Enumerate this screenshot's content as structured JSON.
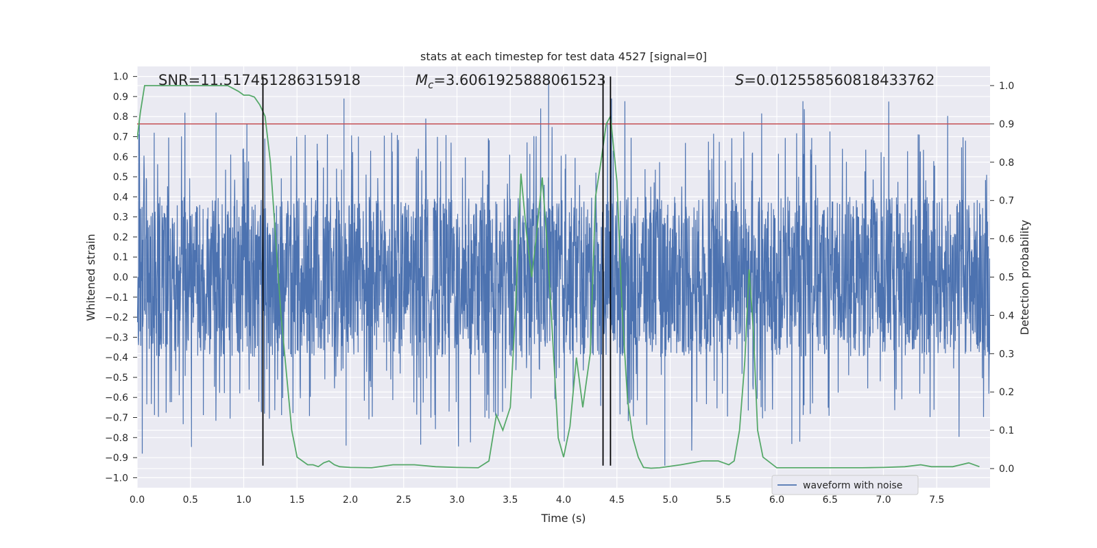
{
  "chart_data": {
    "type": "line",
    "title": "stats at each timestep for test data 4527 [signal=0]",
    "xlabel": "Time (s)",
    "ylabel": "Whitened strain",
    "ylabel_right": "Detection probability",
    "xlim": [
      0.0,
      8.0
    ],
    "ylim": [
      -1.05,
      1.05
    ],
    "ylim_right": [
      -0.05,
      1.05
    ],
    "x_ticks": [
      0.0,
      0.5,
      1.0,
      1.5,
      2.0,
      2.5,
      3.0,
      3.5,
      4.0,
      4.5,
      5.0,
      5.5,
      6.0,
      6.5,
      7.0,
      7.5
    ],
    "x_tick_labels": [
      "0.0",
      "0.5",
      "1.0",
      "1.5",
      "2.0",
      "2.5",
      "3.0",
      "3.5",
      "4.0",
      "4.5",
      "5.0",
      "5.5",
      "6.0",
      "6.5",
      "7.0",
      "7.5"
    ],
    "y_ticks": [
      -1.0,
      -0.9,
      -0.8,
      -0.7,
      -0.6,
      -0.5,
      -0.4,
      -0.3,
      -0.2,
      -0.1,
      0.0,
      0.1,
      0.2,
      0.3,
      0.4,
      0.5,
      0.6,
      0.7,
      0.8,
      0.9,
      1.0
    ],
    "y_tick_labels": [
      "−1.0",
      "−0.9",
      "−0.8",
      "−0.7",
      "−0.6",
      "−0.5",
      "−0.4",
      "−0.3",
      "−0.2",
      "−0.1",
      "0.0",
      "0.1",
      "0.2",
      "0.3",
      "0.4",
      "0.5",
      "0.6",
      "0.7",
      "0.8",
      "0.9",
      "1.0"
    ],
    "y2_ticks": [
      0.0,
      0.1,
      0.2,
      0.3,
      0.4,
      0.5,
      0.6,
      0.7,
      0.8,
      0.9,
      1.0
    ],
    "y2_tick_labels": [
      "0.0",
      "0.1",
      "0.2",
      "0.3",
      "0.4",
      "0.5",
      "0.6",
      "0.7",
      "0.8",
      "0.9",
      "1.0"
    ],
    "annotations": {
      "snr": "SNR=11.517451286315918",
      "mc_symbol": "M",
      "mc_sub": "c",
      "mc_value": "=3.6061925888061523",
      "s_symbol": "S",
      "s_value": "=0.012558560818433762"
    },
    "threshold": {
      "value": 0.9,
      "axis": "right",
      "color": "#c44e52"
    },
    "vertical_lines": [
      1.18,
      4.37,
      4.44
    ],
    "legend": {
      "label": "waveform with noise",
      "location": "lower-right"
    },
    "series": [
      {
        "name": "waveform with noise",
        "axis": "left",
        "color": "#4c72b0",
        "kind": "dense-noise",
        "samples": 3000,
        "core_amplitude": 0.4,
        "max_peak": 1.0,
        "min_trough": -0.94
      },
      {
        "name": "detection probability",
        "axis": "right",
        "color": "#55a868",
        "x": [
          0.0,
          0.03,
          0.07,
          0.2,
          0.4,
          0.6,
          0.85,
          0.95,
          1.0,
          1.05,
          1.1,
          1.15,
          1.2,
          1.25,
          1.3,
          1.35,
          1.4,
          1.45,
          1.5,
          1.55,
          1.6,
          1.65,
          1.7,
          1.75,
          1.8,
          1.85,
          1.9,
          2.0,
          2.2,
          2.4,
          2.6,
          2.8,
          3.0,
          3.2,
          3.3,
          3.37,
          3.43,
          3.5,
          3.55,
          3.6,
          3.65,
          3.7,
          3.75,
          3.8,
          3.85,
          3.9,
          3.95,
          4.0,
          4.06,
          4.12,
          4.18,
          4.25,
          4.3,
          4.35,
          4.4,
          4.44,
          4.5,
          4.55,
          4.6,
          4.65,
          4.7,
          4.75,
          4.82,
          4.9,
          5.1,
          5.3,
          5.45,
          5.5,
          5.55,
          5.6,
          5.65,
          5.7,
          5.74,
          5.78,
          5.82,
          5.87,
          6.0,
          6.2,
          6.5,
          6.8,
          7.0,
          7.2,
          7.35,
          7.45,
          7.65,
          7.8,
          7.9
        ],
        "y": [
          0.86,
          0.93,
          1.0,
          1.0,
          1.0,
          1.0,
          1.0,
          0.985,
          0.975,
          0.975,
          0.97,
          0.95,
          0.92,
          0.8,
          0.6,
          0.4,
          0.25,
          0.1,
          0.03,
          0.02,
          0.01,
          0.01,
          0.005,
          0.015,
          0.02,
          0.01,
          0.005,
          0.003,
          0.002,
          0.01,
          0.01,
          0.005,
          0.003,
          0.002,
          0.02,
          0.14,
          0.1,
          0.16,
          0.42,
          0.77,
          0.62,
          0.5,
          0.62,
          0.76,
          0.57,
          0.33,
          0.08,
          0.03,
          0.11,
          0.29,
          0.16,
          0.3,
          0.71,
          0.8,
          0.9,
          0.92,
          0.75,
          0.41,
          0.18,
          0.08,
          0.03,
          0.003,
          0.001,
          0.002,
          0.01,
          0.02,
          0.02,
          0.015,
          0.01,
          0.02,
          0.1,
          0.28,
          0.52,
          0.36,
          0.1,
          0.03,
          0.002,
          0.002,
          0.002,
          0.002,
          0.003,
          0.005,
          0.01,
          0.005,
          0.005,
          0.015,
          0.005
        ]
      }
    ]
  }
}
